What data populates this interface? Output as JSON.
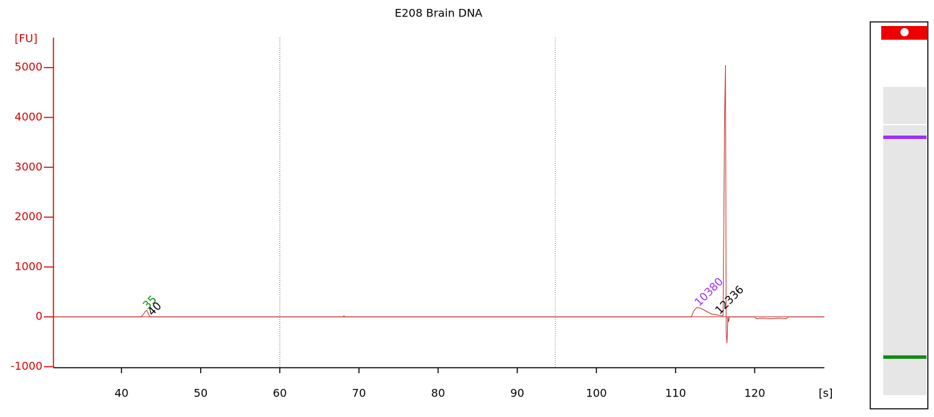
{
  "chart_data": {
    "type": "line",
    "title": "E208 Brain DNA",
    "y_label": "[FU]",
    "x_label": "[s]",
    "x": [
      31.5,
      42.5,
      42.8,
      43.0,
      43.2,
      43.4,
      43.6,
      68.0,
      68.1,
      68.2,
      112.0,
      112.3,
      112.7,
      113.2,
      113.8,
      114.5,
      115.5,
      116.0,
      116.2,
      116.3,
      116.4,
      116.5,
      116.6,
      116.7,
      116.8,
      120.0,
      120.2,
      121.0,
      122.0,
      123.0,
      124.0,
      124.2,
      128.8
    ],
    "values": [
      0,
      0,
      60,
      110,
      130,
      60,
      0,
      0,
      20,
      0,
      0,
      120,
      190,
      170,
      120,
      60,
      30,
      20,
      4000,
      5050,
      -300,
      -530,
      0,
      -100,
      0,
      0,
      -40,
      -30,
      -40,
      -30,
      -40,
      0,
      0
    ],
    "color": "#c0302a",
    "axis_color": "#d40000",
    "xlim": [
      31.4,
      128.8
    ],
    "ylim": [
      -1020,
      5600
    ],
    "xticks": [
      40,
      50,
      60,
      70,
      80,
      90,
      100,
      110,
      120
    ],
    "yticks": [
      -1000,
      0,
      1000,
      2000,
      3000,
      4000,
      5000
    ],
    "markers": [
      {
        "x": 60,
        "color": "#555555"
      },
      {
        "x": 94.8,
        "color": "#6a7fb5"
      }
    ],
    "annotations": [
      {
        "text": "35",
        "x": 43.0,
        "y": 130,
        "color": "#138a13"
      },
      {
        "text": "40",
        "x": 43.6,
        "y": 0,
        "color": "#000000"
      },
      {
        "text": "10380",
        "x": 112.7,
        "y": 190,
        "color": "#9b30ff"
      },
      {
        "text": "12336",
        "x": 115.3,
        "y": 30,
        "color": "#000000"
      }
    ]
  }
}
